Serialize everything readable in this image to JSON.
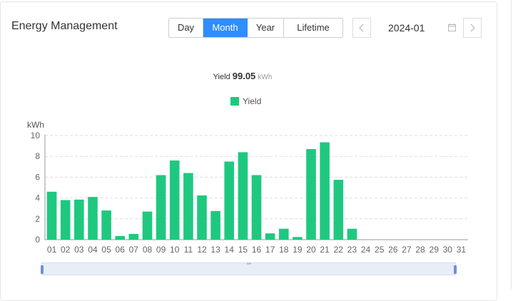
{
  "header": {
    "title": "Energy Management",
    "period_tabs": [
      {
        "label": "Day",
        "active": false
      },
      {
        "label": "Month",
        "active": true
      },
      {
        "label": "Year",
        "active": false
      },
      {
        "label": "Lifetime",
        "active": false
      }
    ],
    "date_picker": {
      "value": "2024-01",
      "prev_icon": "chevron-left-icon",
      "next_icon": "chevron-right-icon",
      "calendar_icon": "calendar-icon"
    }
  },
  "summary": {
    "label": "Yield",
    "value": "99.05",
    "unit": "kWh"
  },
  "colors": {
    "accent": "#2f8dff",
    "bar": "#1ec97f"
  },
  "chart_data": {
    "type": "bar",
    "ylabel": "kWh",
    "ylim": [
      0,
      10
    ],
    "yticks": [
      "0",
      "2",
      "4",
      "6",
      "8",
      "10"
    ],
    "grid": true,
    "legend_position": "top-center",
    "categories": [
      "01",
      "02",
      "03",
      "04",
      "05",
      "06",
      "07",
      "08",
      "09",
      "10",
      "11",
      "12",
      "13",
      "14",
      "15",
      "16",
      "17",
      "18",
      "19",
      "20",
      "21",
      "22",
      "23",
      "24",
      "25",
      "26",
      "27",
      "28",
      "29",
      "30",
      "31"
    ],
    "series": [
      {
        "name": "Yield",
        "values": [
          4.6,
          3.8,
          3.85,
          4.1,
          2.8,
          0.35,
          0.55,
          2.7,
          6.2,
          7.6,
          6.4,
          4.25,
          2.75,
          7.5,
          8.4,
          6.2,
          0.6,
          1.05,
          0.25,
          8.7,
          9.35,
          5.75,
          1.05,
          null,
          null,
          null,
          null,
          null,
          null,
          null,
          null
        ]
      }
    ]
  }
}
